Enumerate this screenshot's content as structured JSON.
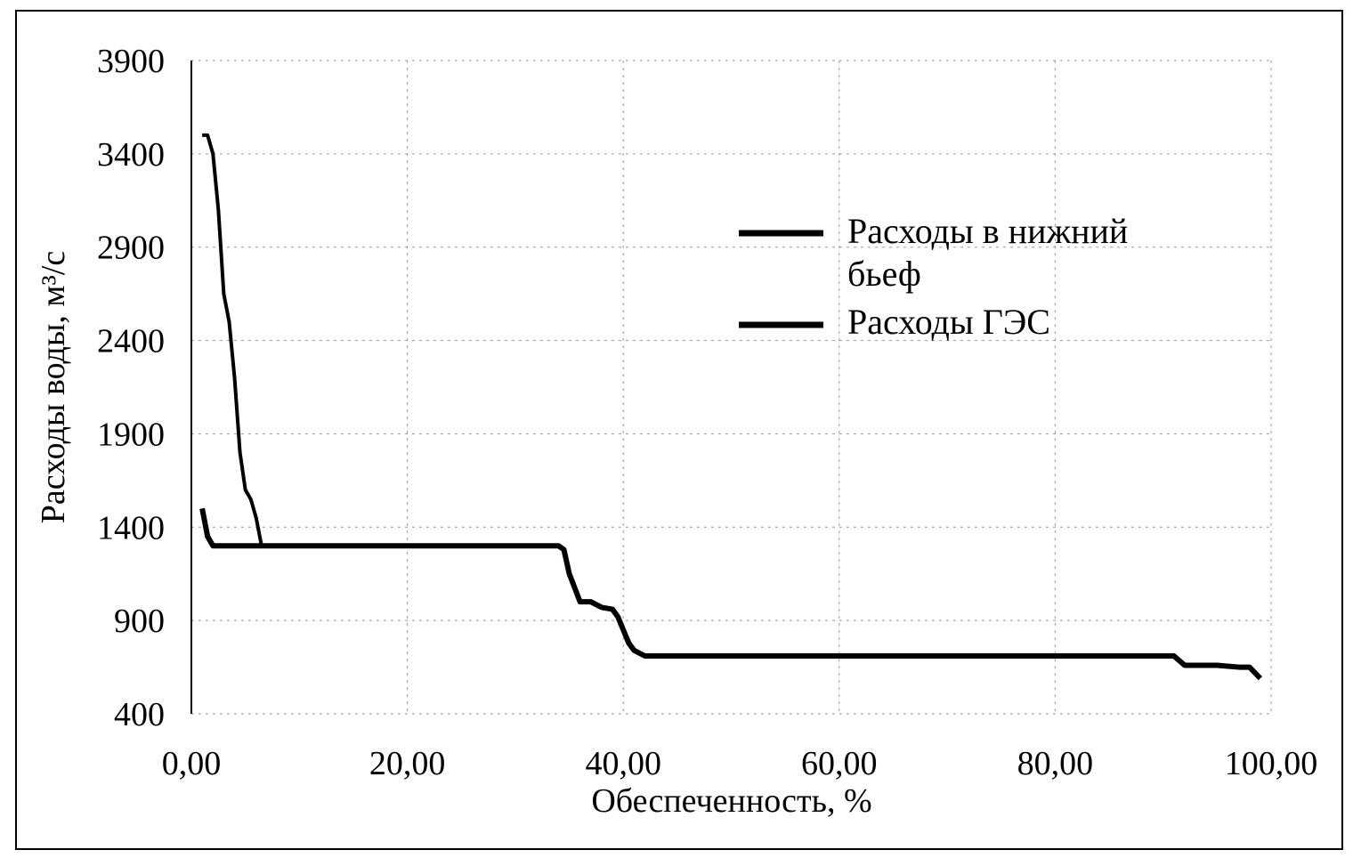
{
  "chart_data": {
    "type": "line",
    "x_label": "Обеспеченность, %",
    "y_label": "Расходы воды, м³/с",
    "xlim": [
      0,
      100
    ],
    "xticks": [
      {
        "value": 0,
        "label": "0,00"
      },
      {
        "value": 20,
        "label": "20,00"
      },
      {
        "value": 40,
        "label": "40,00"
      },
      {
        "value": 60,
        "label": "60,00"
      },
      {
        "value": 80,
        "label": "80,00"
      },
      {
        "value": 100,
        "label": "100,00"
      }
    ],
    "ylim": [
      400,
      3900
    ],
    "yticks": [
      400,
      900,
      1400,
      1900,
      2400,
      2900,
      3400,
      3900
    ],
    "grid": true,
    "series": [
      {
        "name": "Расходы в нижний бьеф",
        "color": "#000000",
        "x": [
          1,
          1.5,
          2,
          2.5,
          3,
          3.5,
          4,
          4.5,
          5,
          5.5,
          6,
          6.5,
          7
        ],
        "values": [
          3500,
          3500,
          3400,
          3100,
          2650,
          2500,
          2200,
          1800,
          1600,
          1550,
          1450,
          1300,
          1300
        ]
      },
      {
        "name": "Расходы ГЭС",
        "color": "#000000",
        "x": [
          1,
          1.5,
          2,
          5,
          10,
          20,
          30,
          34,
          34.5,
          35,
          36,
          37,
          38,
          39,
          39.5,
          40,
          40.5,
          41,
          42,
          50,
          60,
          70,
          80,
          90,
          91,
          92,
          95,
          97,
          98,
          99
        ],
        "values": [
          1500,
          1350,
          1300,
          1300,
          1300,
          1300,
          1300,
          1300,
          1280,
          1150,
          1000,
          1000,
          970,
          960,
          920,
          850,
          780,
          740,
          710,
          710,
          710,
          710,
          710,
          710,
          710,
          660,
          660,
          650,
          650,
          590
        ]
      }
    ]
  }
}
